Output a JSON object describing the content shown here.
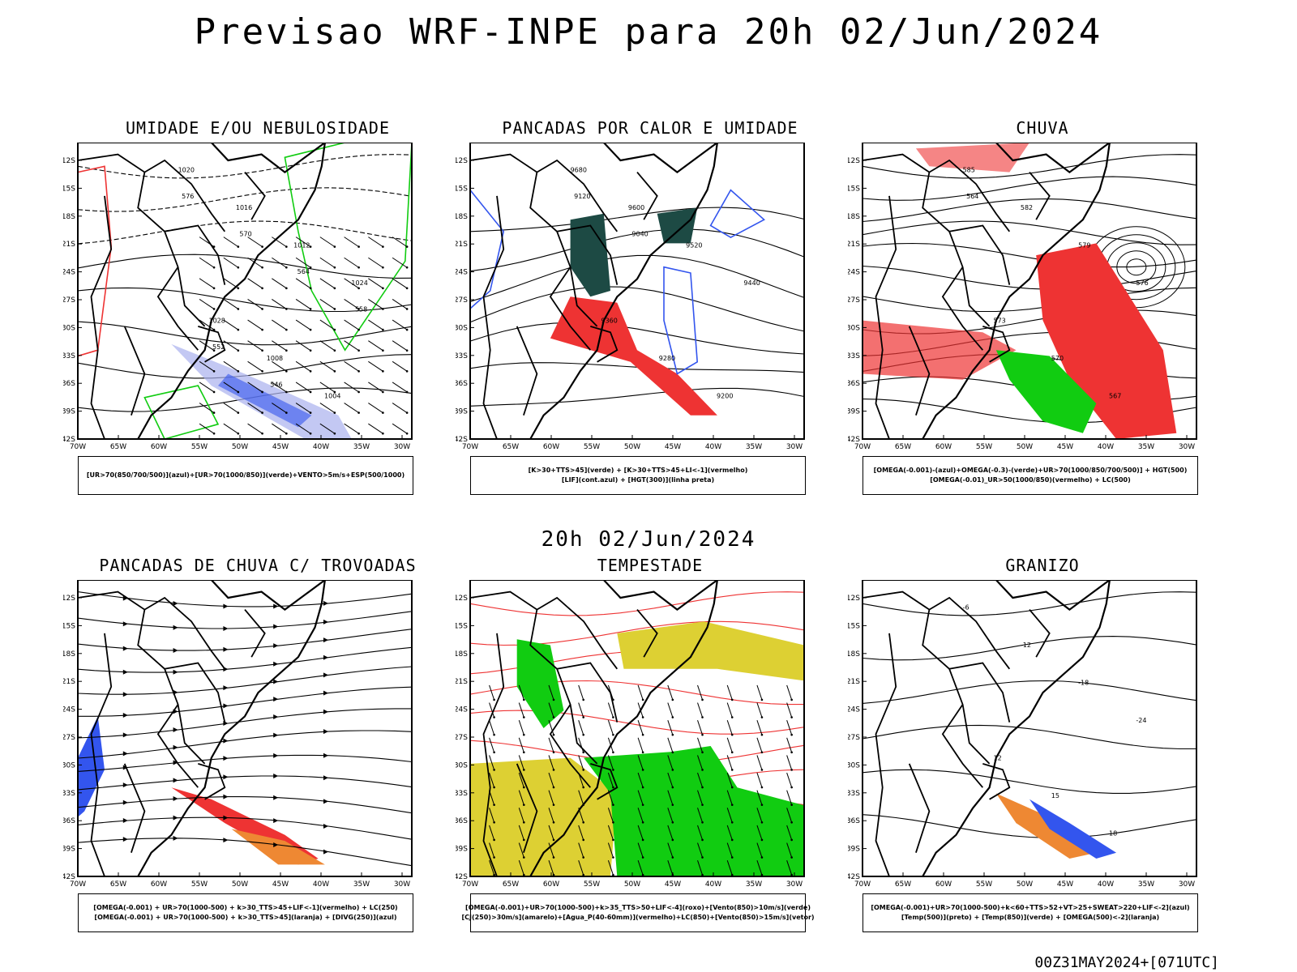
{
  "header": {
    "title": "Previsao WRF-INPE  para 20h 02/Jun/2024"
  },
  "middle_date": "20h 02/Jun/2024",
  "footer": {
    "run": "00Z31MAY2024+[071UTC]"
  },
  "axes": {
    "lat_labels": [
      "12S",
      "15S",
      "18S",
      "21S",
      "24S",
      "27S",
      "30S",
      "33S",
      "36S",
      "39S",
      "42S"
    ],
    "lon_labels": [
      "70W",
      "65W",
      "60W",
      "55W",
      "50W",
      "45W",
      "40W",
      "35W",
      "30W"
    ]
  },
  "colors": {
    "red": "#ee3333",
    "green": "#11cc11",
    "blue": "#3355ee",
    "lavender": "#aab0ee",
    "dark_teal": "#1d4a44",
    "yellow": "#ddd033",
    "orange": "#ee8833"
  },
  "panels": [
    {
      "title": "UMIDADE E/OU NEBULOSIDADE",
      "legend": [
        "[UR>70(850/700/500)](azul)+[UR>70(1000/850)](verde)+VENTO>5m/s+ESP(500/1000)"
      ],
      "contour_labels": [
        "1020",
        "1016",
        "1012",
        "1024",
        "1028",
        "1008",
        "1004",
        "576",
        "570",
        "564",
        "558",
        "552",
        "546"
      ]
    },
    {
      "title": "PANCADAS POR CALOR E UMIDADE",
      "legend": [
        "[K>30+TTS>45](verde) + [K>30+TTS>45+LI<-1](vermelho)",
        "[LIF](cont.azul) + [HGT(300)](linha preta)"
      ],
      "contour_labels": [
        "9680",
        "9600",
        "9520",
        "9440",
        "9360",
        "9280",
        "9200",
        "9120",
        "9040"
      ]
    },
    {
      "title": "CHUVA",
      "legend": [
        "[OMEGA(-0.001)-(azul)+OMEGA(-0.3)-(verde)+UR>70(1000/850/700/500)] + HGT(500)",
        "[OMEGA(-0.01)_UR>50(1000/850)(vermelho) + LC(500)"
      ],
      "contour_labels": [
        "585",
        "582",
        "579",
        "576",
        "573",
        "570",
        "567",
        "564"
      ]
    },
    {
      "title": "PANCADAS DE CHUVA C/ TROVOADAS",
      "legend": [
        "[OMEGA(-0.001) + UR>70(1000-500) + k>30_TTS>45+LIF<-1](vermelho) + LC(250)",
        "[OMEGA(-0.001) + UR>70(1000-500) + k>30_TTS>45](laranja) + [DIVG(250)](azul)"
      ]
    },
    {
      "title": "TEMPESTADE",
      "legend": [
        "[OMEGA(-0.001)+UR>70(1000-500)+k>35_TTS>50+LIF<-4](roxo)+[Vento(850)>10m/s](verde)",
        "[CJ(250)>30m/s](amarelo)+[Agua_P(40-60mm)](vermelho)+LC(850)+[Vento(850)>15m/s](vetor)"
      ]
    },
    {
      "title": "GRANIZO",
      "legend": [
        "[OMEGA(-0.001)+UR>70(1000-500)+k<60+TTS>52+VT>25+SWEAT>220+LIF<-2](azul)",
        "[Temp(500)](preto) + [Temp(850)](verde) + [OMEGA(500)<-2](laranja)"
      ],
      "contour_labels": [
        "-6",
        "-12",
        "-18",
        "-24",
        "12",
        "15",
        "18"
      ]
    }
  ]
}
